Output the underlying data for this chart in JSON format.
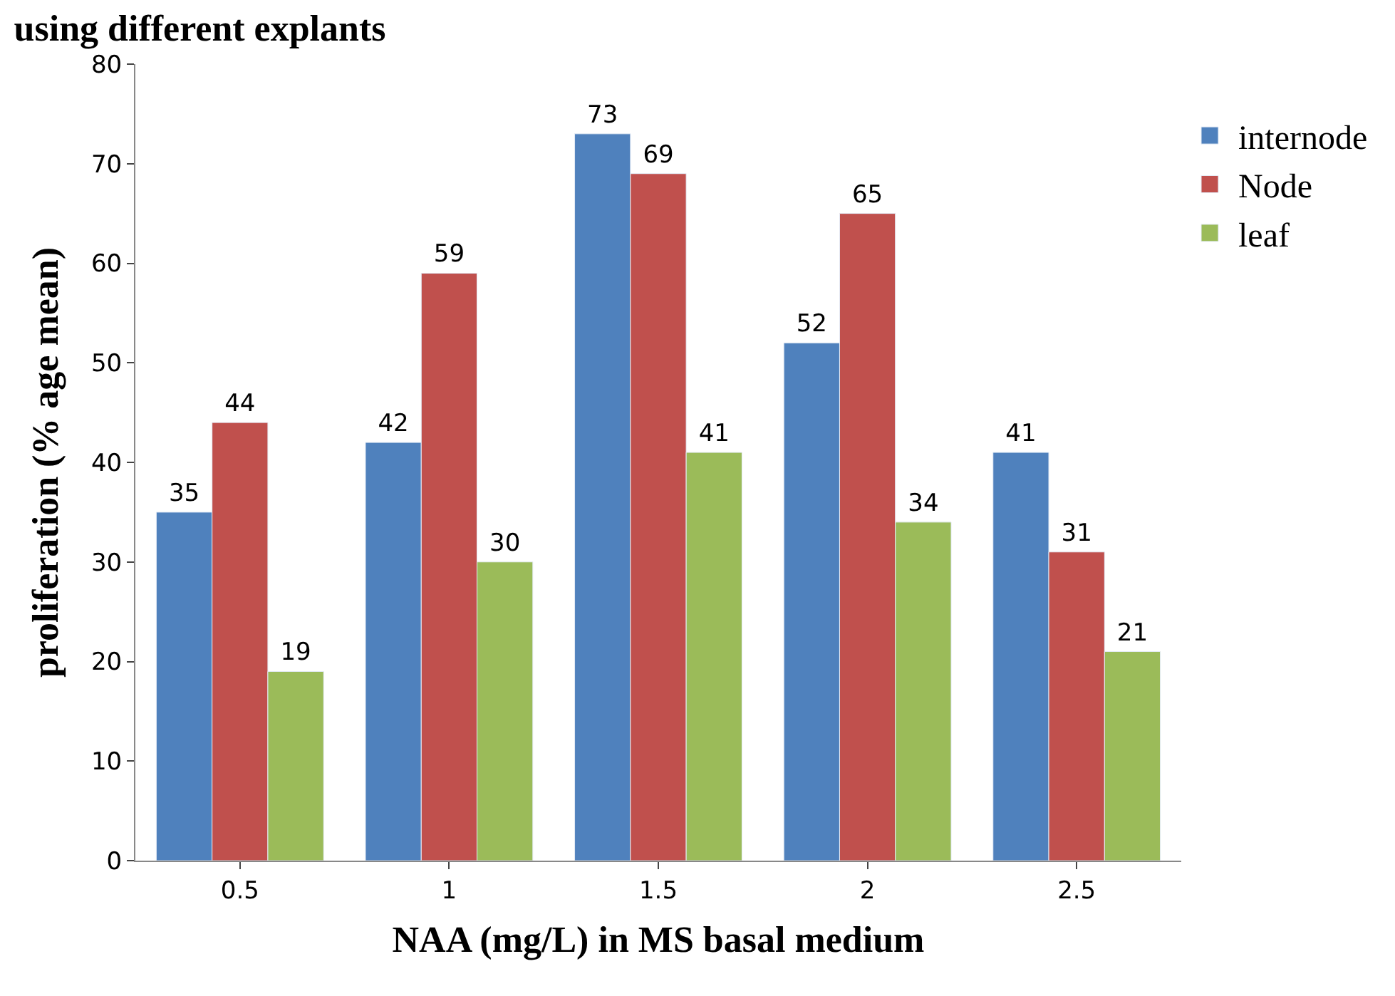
{
  "chart_data": {
    "type": "bar",
    "title": "using different explants",
    "xlabel": "NAA (mg/L) in MS basal medium",
    "ylabel": "proliferation (% age mean)",
    "categories": [
      "0.5",
      "1",
      "1.5",
      "2",
      "2.5"
    ],
    "series": [
      {
        "name": "internode",
        "color": "#4f81bd",
        "values": [
          35,
          42,
          73,
          52,
          41
        ]
      },
      {
        "name": "Node",
        "color": "#c0504d",
        "values": [
          44,
          59,
          69,
          65,
          31
        ]
      },
      {
        "name": "leaf",
        "color": "#9bbb59",
        "values": [
          19,
          30,
          41,
          34,
          21
        ]
      }
    ],
    "ylim": [
      0,
      80
    ],
    "yticks": [
      0,
      10,
      20,
      30,
      40,
      50,
      60,
      70,
      80
    ],
    "data_labels": true,
    "legend": "top right"
  }
}
